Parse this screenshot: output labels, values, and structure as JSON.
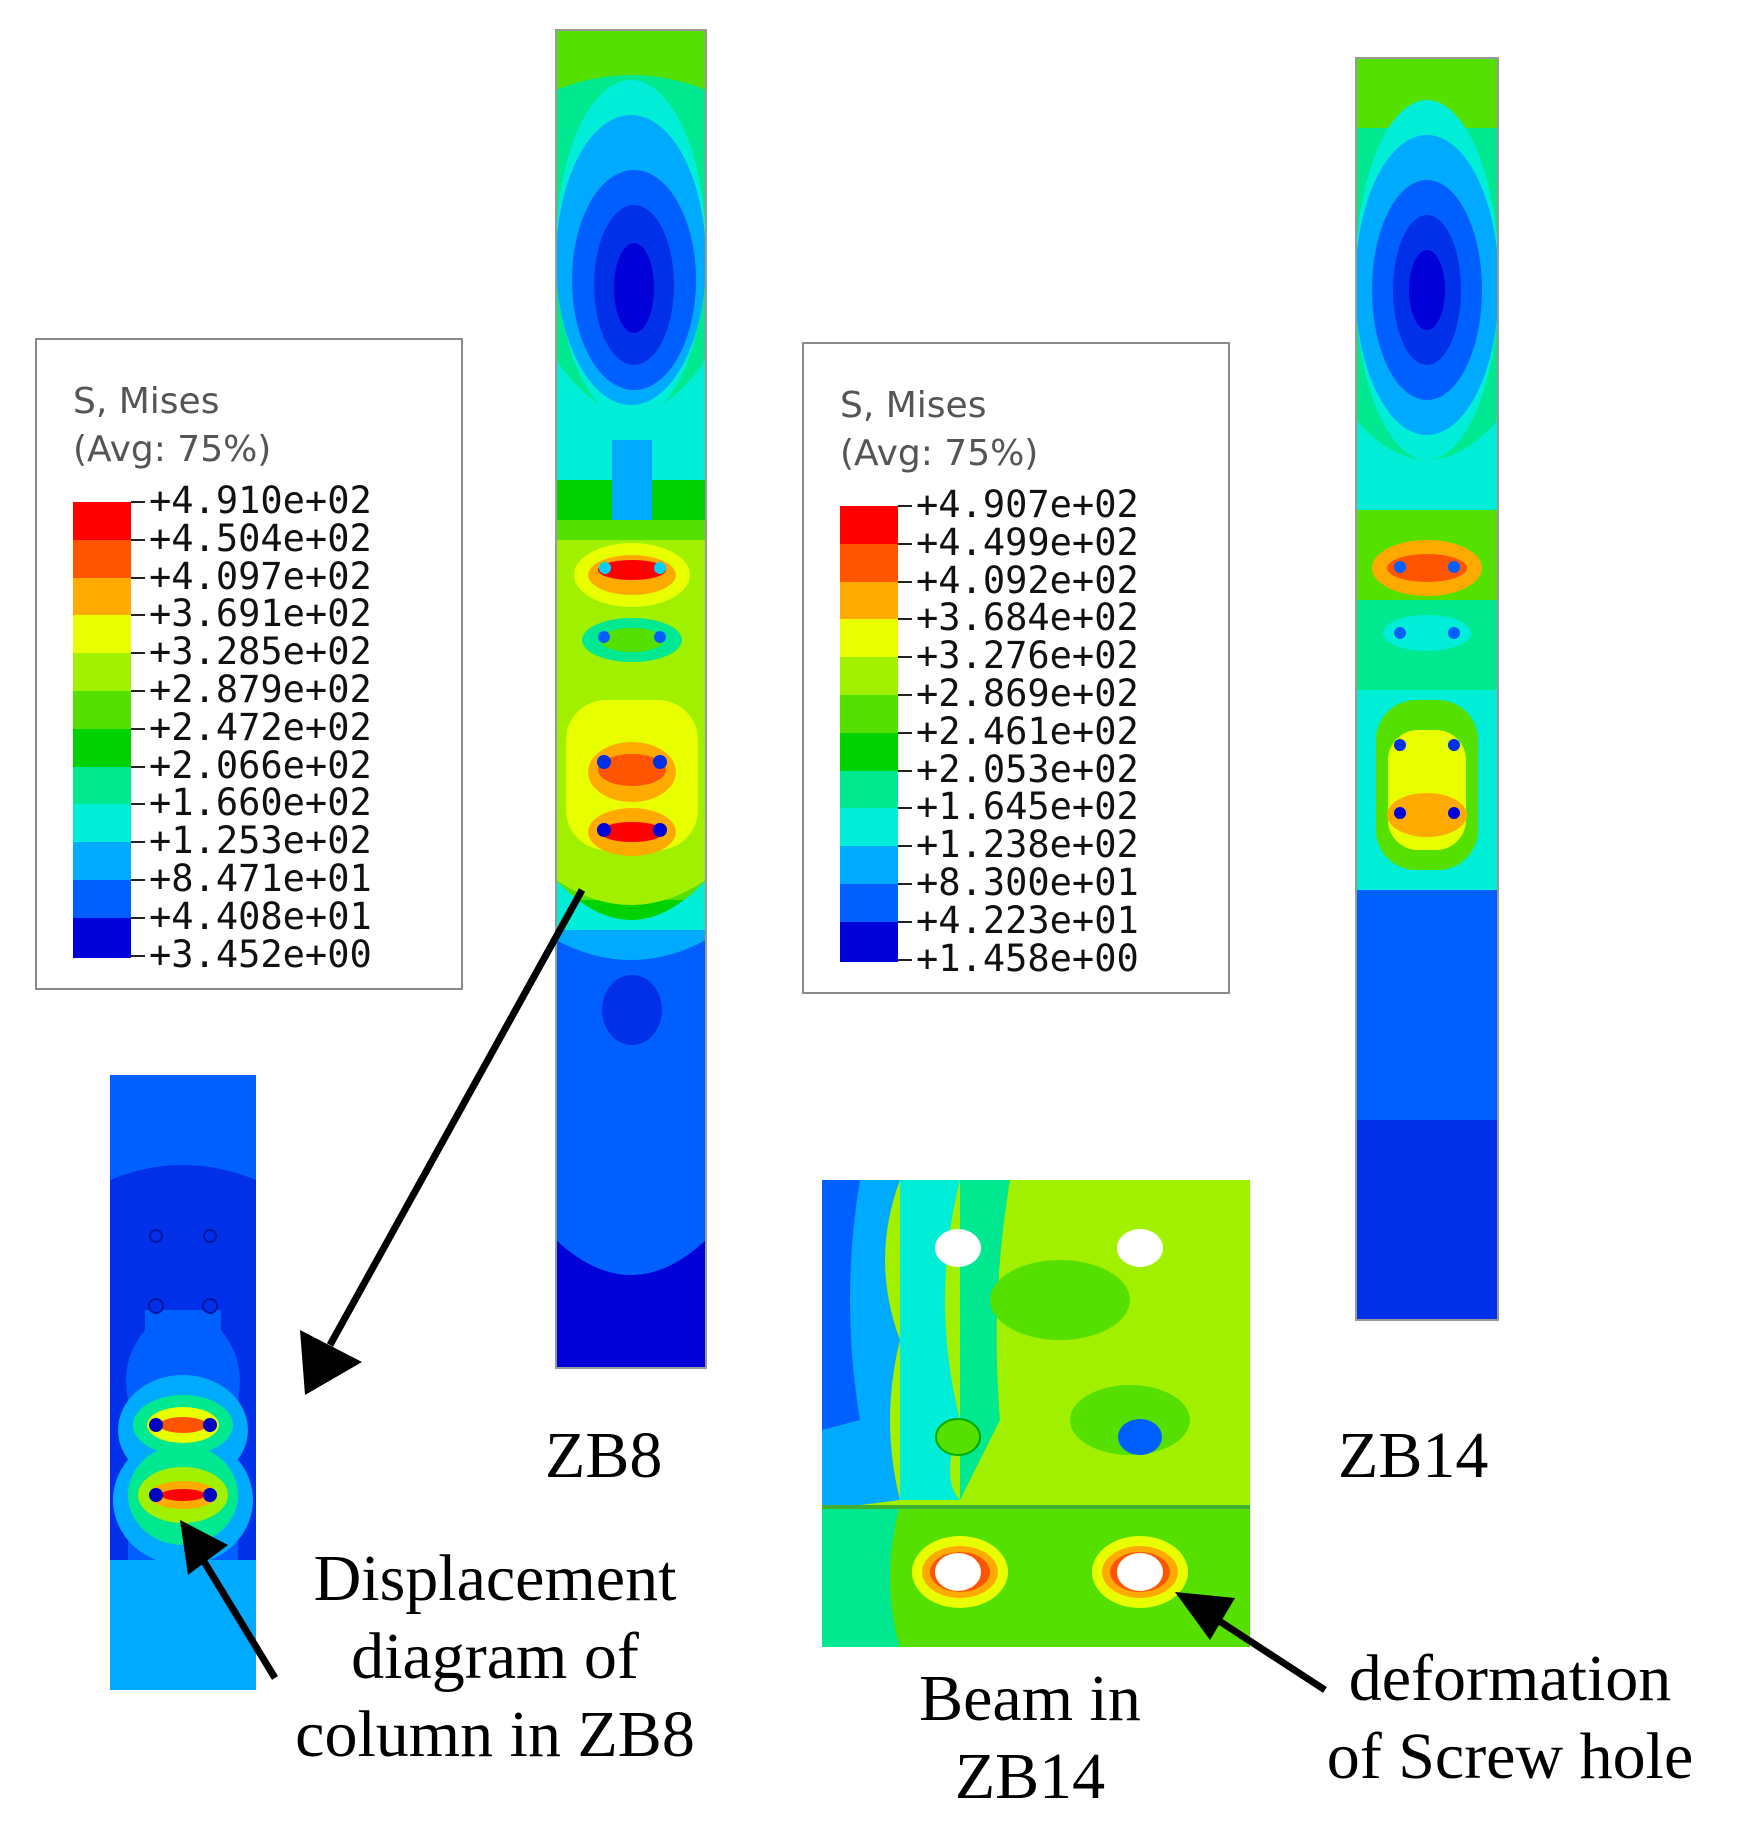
{
  "legend_left": {
    "title_line1": "S, Mises",
    "title_line2": "(Avg: 75%)",
    "values": [
      "+4.910e+02",
      "+4.504e+02",
      "+4.097e+02",
      "+3.691e+02",
      "+3.285e+02",
      "+2.879e+02",
      "+2.472e+02",
      "+2.066e+02",
      "+1.660e+02",
      "+1.253e+02",
      "+8.471e+01",
      "+4.408e+01",
      "+3.452e+00"
    ]
  },
  "legend_right": {
    "title_line1": "S, Mises",
    "title_line2": "(Avg: 75%)",
    "values": [
      "+4.907e+02",
      "+4.499e+02",
      "+4.092e+02",
      "+3.684e+02",
      "+3.276e+02",
      "+2.869e+02",
      "+2.461e+02",
      "+2.053e+02",
      "+1.645e+02",
      "+1.238e+02",
      "+8.300e+01",
      "+4.223e+01",
      "+1.458e+00"
    ]
  },
  "color_scale": [
    "#ff0000",
    "#ff5500",
    "#ffaa00",
    "#e8ff00",
    "#a0f000",
    "#55e000",
    "#00d200",
    "#00e890",
    "#00eed8",
    "#00aaff",
    "#0060ff",
    "#0030e8",
    "#0000d8"
  ],
  "labels": {
    "zb8": "ZB8",
    "zb14": "ZB14",
    "displacement_line1": "Displacement",
    "displacement_line2": "diagram of",
    "displacement_line3": "column in ZB8",
    "beam_line1": "Beam in",
    "beam_line2": "ZB14",
    "deformation_line1": "deformation",
    "deformation_line2": "of Screw hole"
  }
}
